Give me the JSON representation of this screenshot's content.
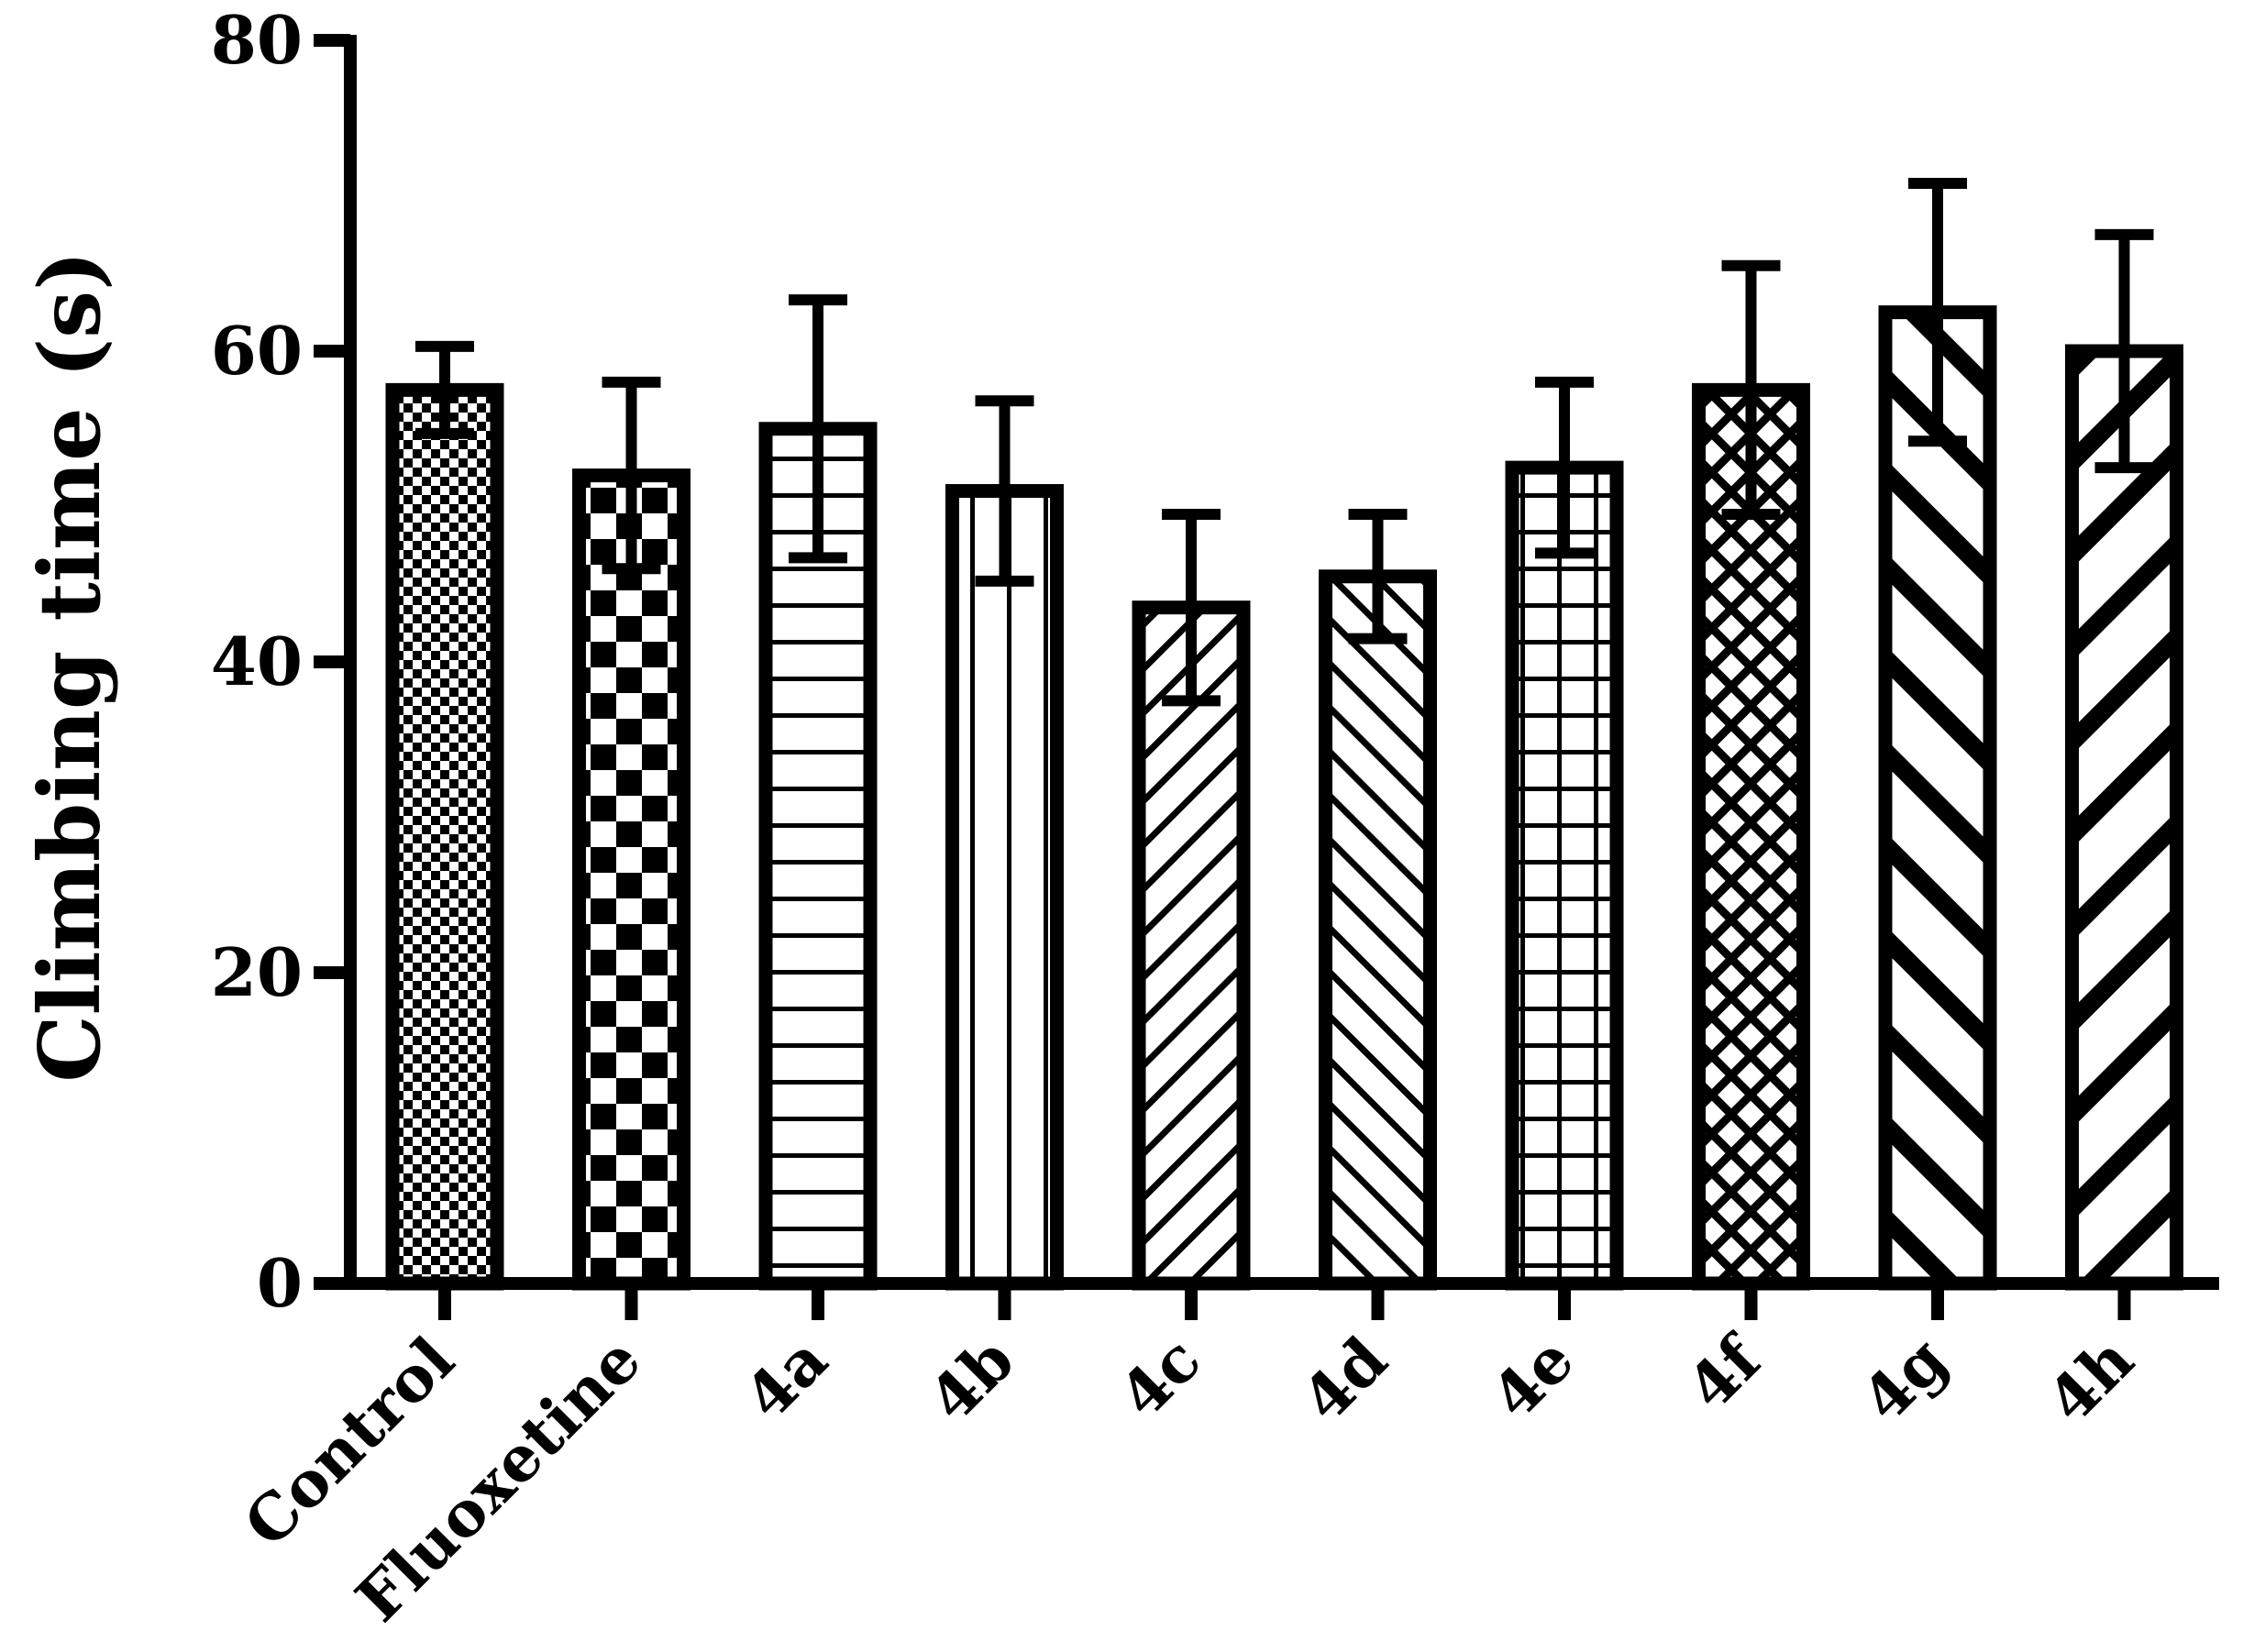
{
  "chart_data": {
    "type": "bar",
    "title": "",
    "xlabel": "",
    "ylabel": "Climbing time (s)",
    "ylim": [
      0,
      80
    ],
    "yticks": [
      0,
      20,
      40,
      60,
      80
    ],
    "ytick_labels": [
      "0",
      "20",
      "40",
      "60",
      "80"
    ],
    "grid": false,
    "legend": "none",
    "error_bars": true,
    "categories": [
      "Control",
      "Fluoxetine",
      "4a",
      "4b",
      "4c",
      "4d",
      "4e",
      "4f",
      "4g",
      "4h"
    ],
    "values": [
      57.5,
      52.0,
      55.0,
      51.0,
      43.5,
      45.5,
      52.5,
      57.5,
      62.5,
      60.0
    ],
    "errors": [
      2.8,
      6.0,
      8.3,
      5.8,
      6.0,
      4.0,
      5.5,
      8.0,
      8.3,
      7.5
    ],
    "patterns": [
      "fine-checker",
      "coarse-checker",
      "horizontal-lines",
      "vertical-lines",
      "diagonal-up-thin",
      "diagonal-down-thin",
      "grid",
      "diamond-hatch",
      "diagonal-down-thick",
      "diagonal-up-thick"
    ],
    "bar_color": "#000000",
    "background": "#ffffff"
  }
}
